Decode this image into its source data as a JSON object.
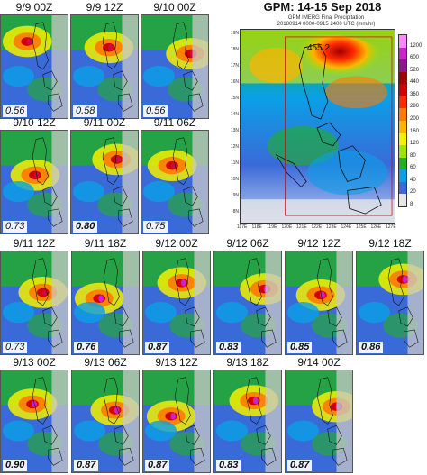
{
  "panels": [
    {
      "title": "9/9 00Z",
      "score": "0.56",
      "bold": false
    },
    {
      "title": "9/9 12Z",
      "score": "0.58",
      "bold": false
    },
    {
      "title": "9/10 00Z",
      "score": "0.56",
      "bold": false
    },
    {
      "title": "9/10 12Z",
      "score": "0.73",
      "bold": false
    },
    {
      "title": "9/11 00Z",
      "score": "0.80",
      "bold": true
    },
    {
      "title": "9/11 06Z",
      "score": "0.75",
      "bold": false
    },
    {
      "title": "9/11 12Z",
      "score": "0.73",
      "bold": false
    },
    {
      "title": "9/11 18Z",
      "score": "0.76",
      "bold": true
    },
    {
      "title": "9/12 00Z",
      "score": "0.87",
      "bold": true
    },
    {
      "title": "9/12 06Z",
      "score": "0.83",
      "bold": true
    },
    {
      "title": "9/12 12Z",
      "score": "0.85",
      "bold": true
    },
    {
      "title": "9/12 18Z",
      "score": "0.86",
      "bold": true
    },
    {
      "title": "9/13 00Z",
      "score": "0.90",
      "bold": true
    },
    {
      "title": "9/13 06Z",
      "score": "0.87",
      "bold": true
    },
    {
      "title": "9/13 12Z",
      "score": "0.87",
      "bold": true
    },
    {
      "title": "9/13 18Z",
      "score": "0.83",
      "bold": true
    },
    {
      "title": "9/14 00Z",
      "score": "0.87",
      "bold": true
    }
  ],
  "gpm": {
    "title": "GPM: 14-15 Sep 2018",
    "subtitle1": "GPM IMERG Final Precipitation",
    "subtitle2": "20180914 0000-0915 2400 UTC (mm/hr)",
    "max_label": "455.2",
    "lat_labels": [
      "19N",
      "18N",
      "17N",
      "16N",
      "15N",
      "14N",
      "13N",
      "12N",
      "11N",
      "10N",
      "9N",
      "8N"
    ],
    "lon_labels": [
      "117E",
      "118E",
      "119E",
      "120E",
      "121E",
      "122E",
      "123E",
      "124E",
      "125E",
      "126E",
      "127E"
    ],
    "colorbar": {
      "labels": [
        "1200",
        "600",
        "520",
        "440",
        "360",
        "280",
        "200",
        "160",
        "120",
        "80",
        "60",
        "40",
        "20",
        "8"
      ],
      "colors": [
        "#ff88ff",
        "#cc22cc",
        "#881a88",
        "#a00000",
        "#d00000",
        "#ff2a00",
        "#ff7a00",
        "#ffb400",
        "#f5f000",
        "#9ae600",
        "#22b022",
        "#0aa0e6",
        "#3a6ad8",
        "#e6e6e6"
      ]
    }
  }
}
